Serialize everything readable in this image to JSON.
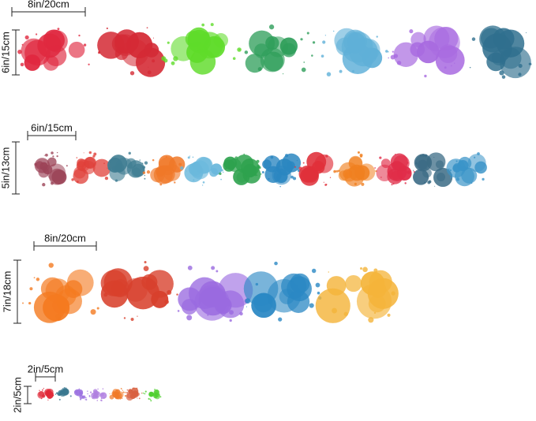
{
  "rows": [
    {
      "width_label": "8in/20cm",
      "height_label": "6in/15cm",
      "splats": [
        "#e0283f",
        "#d42a35",
        "#5fdc2a",
        "#2e9e5a",
        "#5fb0d8",
        "#a86ae0",
        "#2f6f8e"
      ]
    },
    {
      "width_label": "6in/15cm",
      "height_label": "5in/13cm",
      "splats": [
        "#9c4458",
        "#e0403a",
        "#3f7d92",
        "#f07828",
        "#6ab8dc",
        "#2ea24e",
        "#2a86c0",
        "#e0303a",
        "#f08020",
        "#e02c48",
        "#3a6a84",
        "#3a94c8"
      ]
    },
    {
      "width_label": "8in/20cm",
      "height_label": "7in/18cm",
      "splats": [
        "#f47a20",
        "#d8402c",
        "#9a6ae0",
        "#2a88c4",
        "#f4b43a"
      ]
    },
    {
      "width_label": "2in/5cm",
      "height_label": "2in/5cm",
      "splats": [
        "#e02838",
        "#3a7890",
        "#9a70e0",
        "#b080e0",
        "#f07a28",
        "#d86040",
        "#50d030"
      ]
    }
  ]
}
